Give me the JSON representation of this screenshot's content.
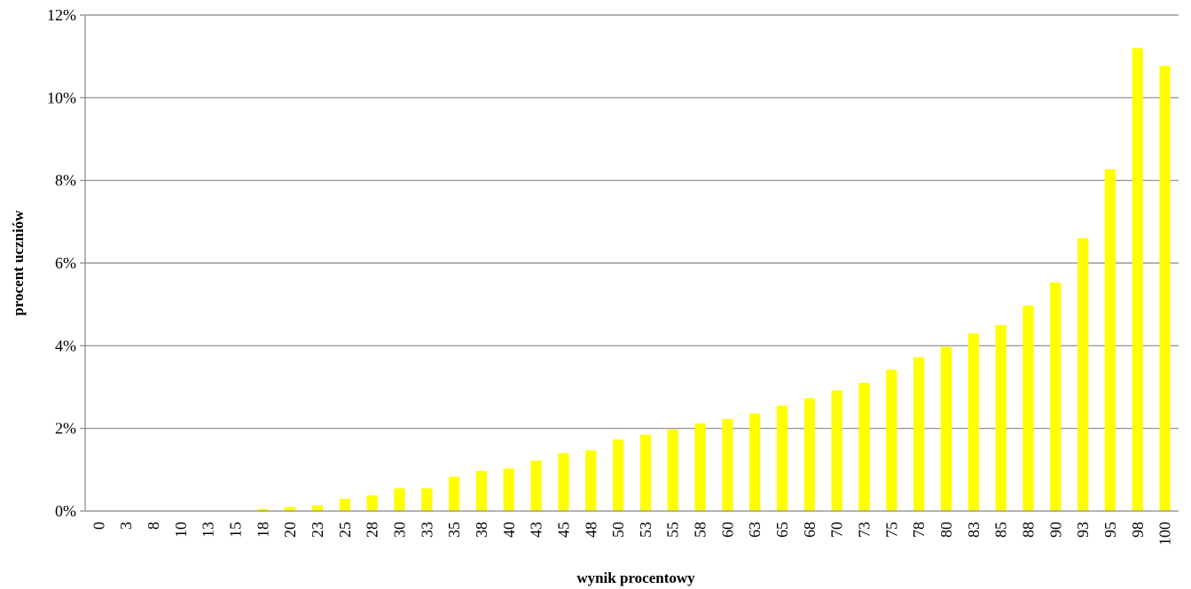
{
  "chart_data": {
    "type": "bar",
    "title": "",
    "xlabel": "wynik procentowy",
    "ylabel": "procent uczniów",
    "categories": [
      "0",
      "3",
      "8",
      "10",
      "13",
      "15",
      "18",
      "20",
      "23",
      "25",
      "28",
      "30",
      "33",
      "35",
      "38",
      "40",
      "43",
      "45",
      "48",
      "50",
      "53",
      "55",
      "58",
      "60",
      "63",
      "65",
      "68",
      "70",
      "73",
      "75",
      "78",
      "80",
      "83",
      "85",
      "88",
      "90",
      "93",
      "95",
      "98",
      "100"
    ],
    "values": [
      0,
      0,
      0,
      0,
      0,
      0,
      0.05,
      0.1,
      0.14,
      0.3,
      0.38,
      0.55,
      0.55,
      0.83,
      0.97,
      1.03,
      1.22,
      1.4,
      1.47,
      1.73,
      1.85,
      1.97,
      2.12,
      2.23,
      2.36,
      2.55,
      2.73,
      2.92,
      3.1,
      3.42,
      3.72,
      3.97,
      4.3,
      4.5,
      4.97,
      5.53,
      6.6,
      8.27,
      11.2,
      10.77
    ],
    "y_ticks": [
      "0%",
      "2%",
      "4%",
      "6%",
      "8%",
      "10%",
      "12%"
    ],
    "ylim": [
      0,
      12
    ],
    "y_unit": "%",
    "grid": true,
    "legend": "none",
    "bar_color": "#ffff00",
    "grid_color": "#868686"
  }
}
